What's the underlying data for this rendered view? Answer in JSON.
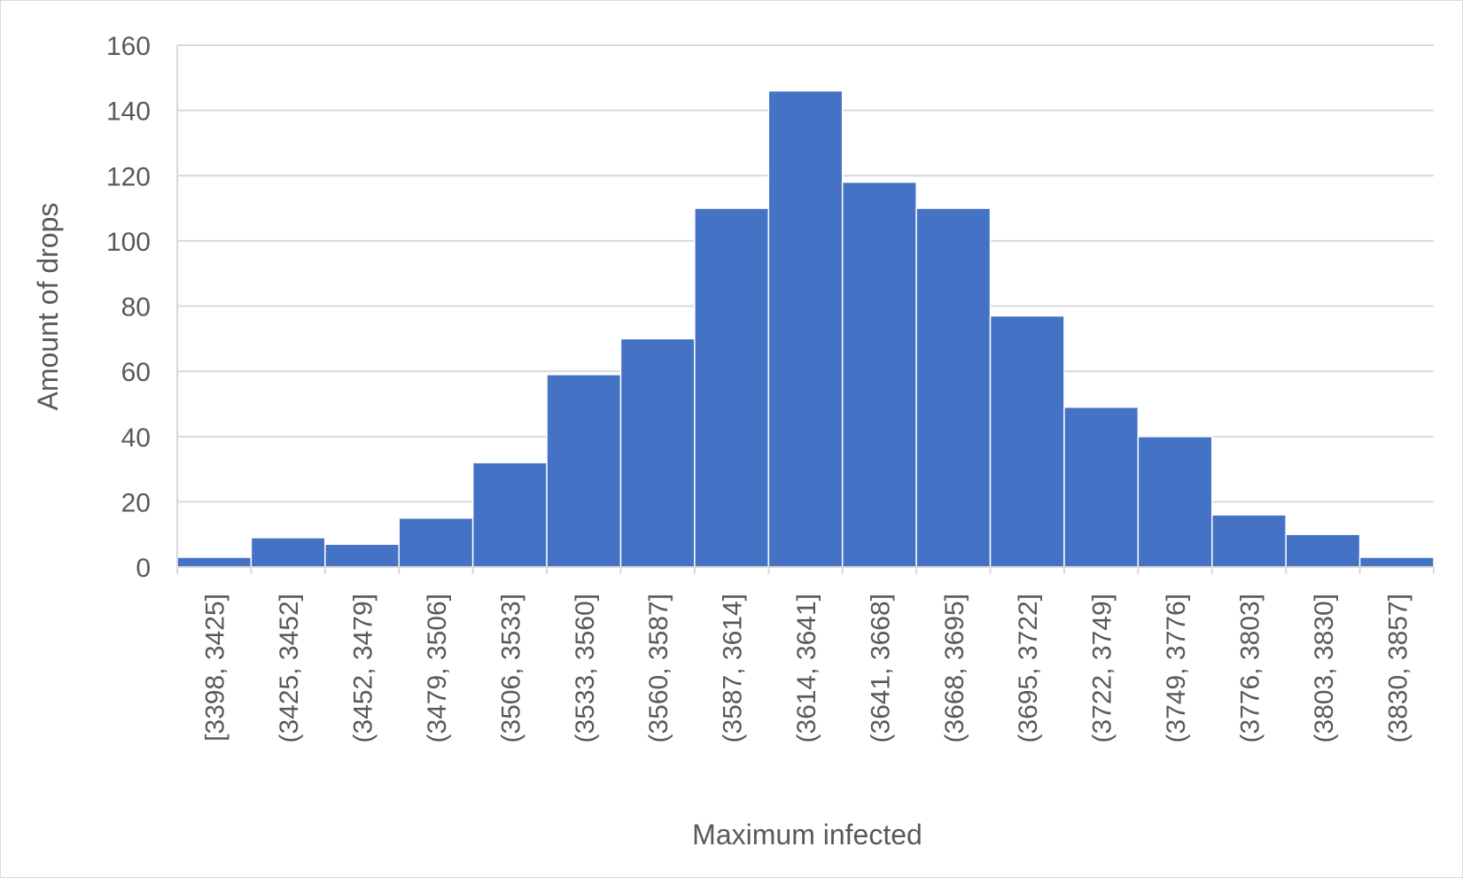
{
  "chart_data": {
    "type": "bar",
    "title": "",
    "xlabel": "Maximum infected",
    "ylabel": "Amount of drops",
    "categories": [
      "[3398, 3425]",
      "(3425, 3452]",
      "(3452, 3479]",
      "(3479, 3506]",
      "(3506, 3533]",
      "(3533, 3560]",
      "(3560, 3587]",
      "(3587, 3614]",
      "(3614, 3641]",
      "(3641, 3668]",
      "(3668, 3695]",
      "(3695, 3722]",
      "(3722, 3749]",
      "(3749, 3776]",
      "(3776, 3803]",
      "(3803, 3830]",
      "(3830, 3857]"
    ],
    "values": [
      3,
      9,
      7,
      15,
      32,
      59,
      70,
      110,
      146,
      118,
      110,
      77,
      49,
      40,
      16,
      10,
      3
    ],
    "ylim": [
      0,
      160
    ],
    "yticks": [
      "0",
      "20",
      "40",
      "60",
      "80",
      "100",
      "120",
      "140",
      "160"
    ],
    "grid": true,
    "legend": "none",
    "colors": {
      "bar": "#4472c4",
      "grid": "#d9d9d9",
      "axis": "#d9d9d9",
      "text": "#595959"
    }
  }
}
